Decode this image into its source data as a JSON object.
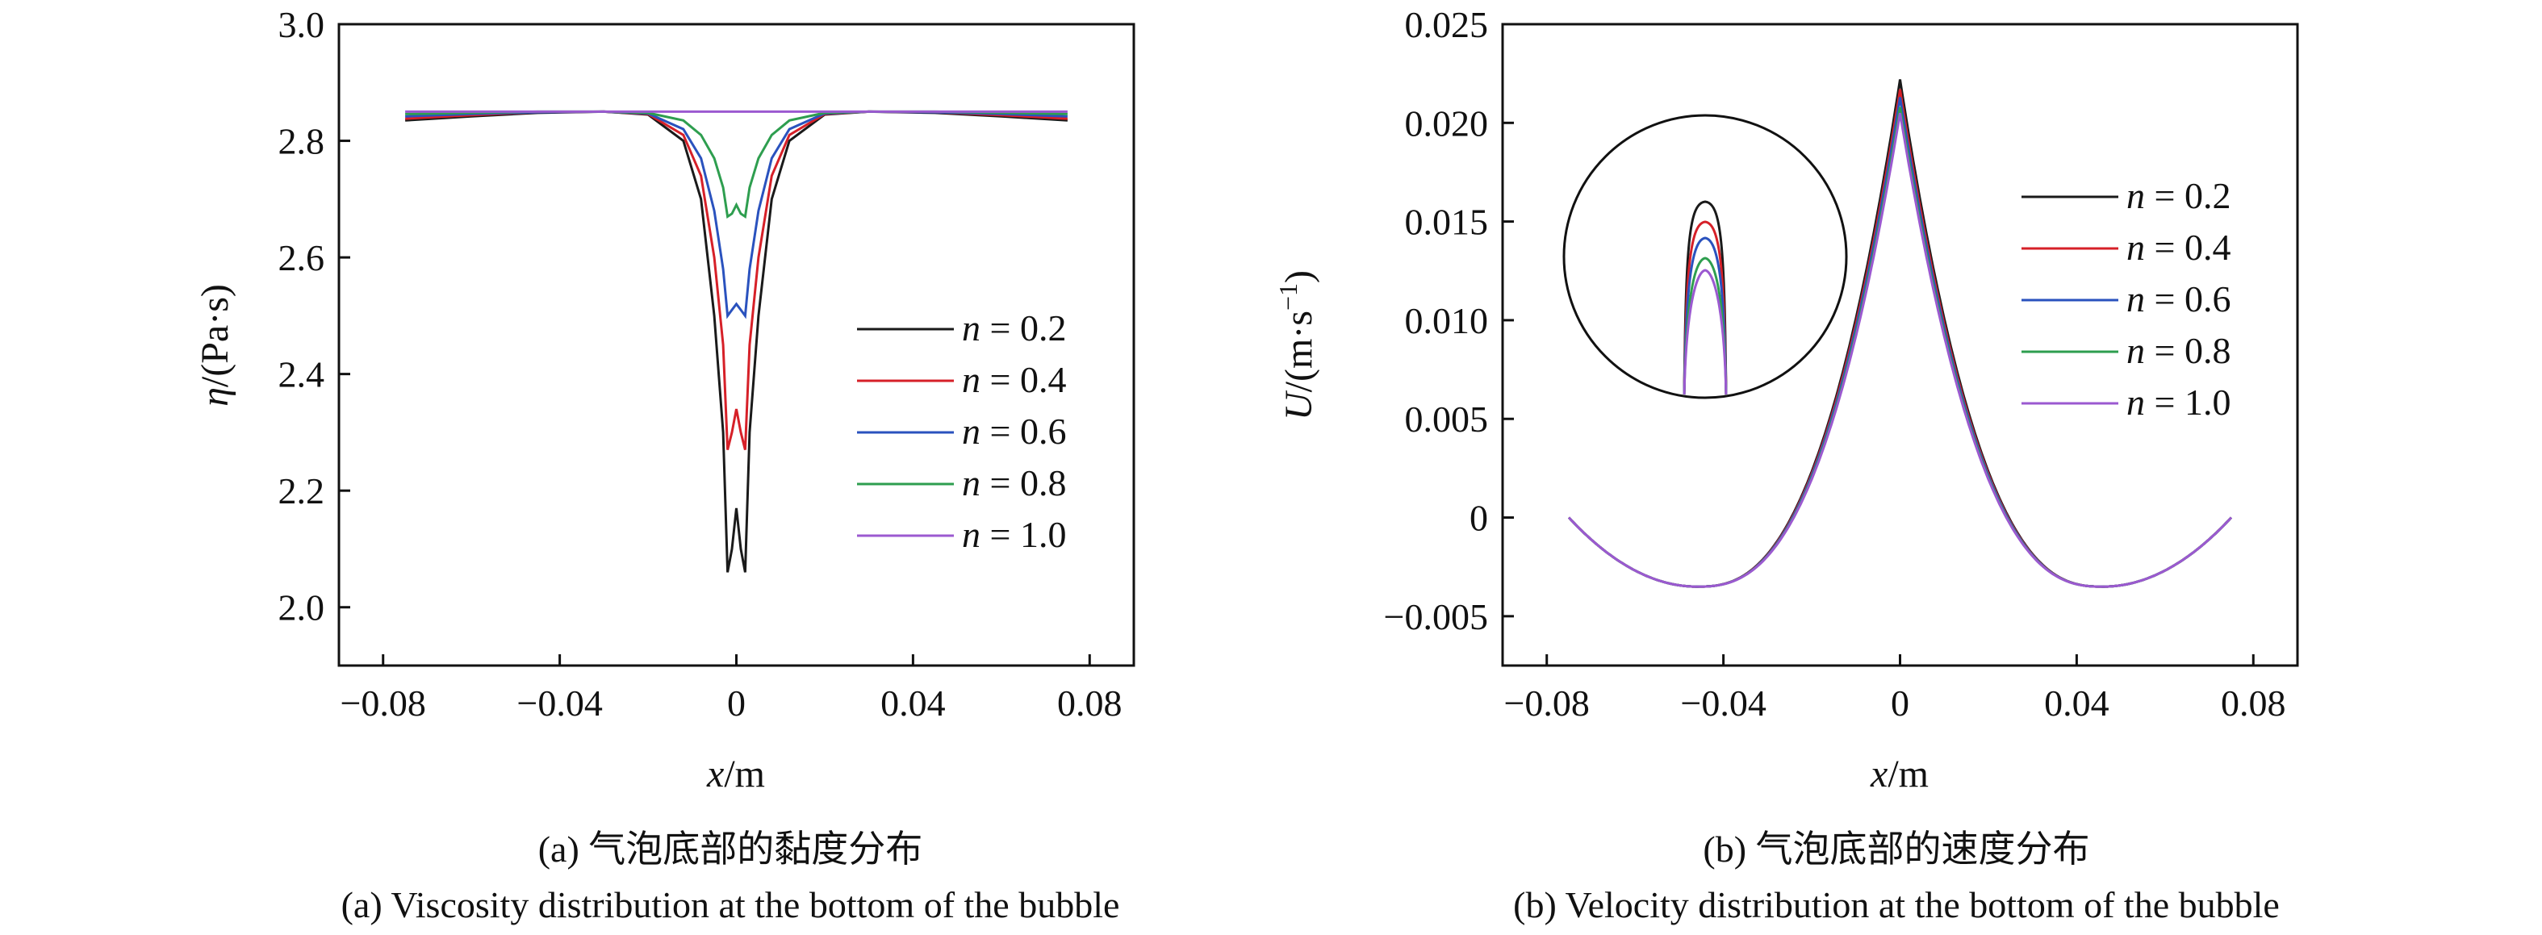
{
  "colors": {
    "n02": "#1a1a1a",
    "n04": "#d62028",
    "n06": "#2a52be",
    "n08": "#2e9e4f",
    "n10": "#9b59d0"
  },
  "chart_data": [
    {
      "type": "line",
      "id": "viscosity",
      "xlabel_var": "x",
      "xlabel_unit": "/m",
      "ylabel_var": "η",
      "ylabel_unit": "/(Pa·s)",
      "xlim": [
        -0.09,
        0.09
      ],
      "ylim": [
        1.9,
        3.0
      ],
      "xticks": [
        -0.08,
        -0.04,
        0,
        0.04,
        0.08
      ],
      "xtick_labels": [
        "−0.08",
        "−0.04",
        "0",
        "0.04",
        "0.08"
      ],
      "yticks": [
        2.0,
        2.2,
        2.4,
        2.6,
        2.8,
        3.0
      ],
      "ytick_labels": [
        "2.0",
        "2.2",
        "2.4",
        "2.6",
        "2.8",
        "3.0"
      ],
      "grid": false,
      "legend_position": "center-right",
      "series": [
        {
          "name": "n = 0.2",
          "var": "n",
          "val": " = 0.2",
          "color_key": "n02",
          "x": [
            -0.075,
            -0.06,
            -0.045,
            -0.03,
            -0.02,
            -0.012,
            -0.008,
            -0.005,
            -0.003,
            -0.002,
            -0.001,
            0,
            0.001,
            0.002,
            0.003,
            0.005,
            0.008,
            0.012,
            0.02,
            0.03,
            0.045,
            0.06,
            0.075
          ],
          "y": [
            2.835,
            2.842,
            2.848,
            2.85,
            2.845,
            2.8,
            2.7,
            2.5,
            2.3,
            2.06,
            2.1,
            2.17,
            2.1,
            2.06,
            2.3,
            2.5,
            2.7,
            2.8,
            2.845,
            2.85,
            2.848,
            2.842,
            2.835
          ]
        },
        {
          "name": "n = 0.4",
          "var": "n",
          "val": " = 0.4",
          "color_key": "n04",
          "x": [
            -0.075,
            -0.06,
            -0.045,
            -0.03,
            -0.02,
            -0.012,
            -0.008,
            -0.005,
            -0.003,
            -0.002,
            -0.001,
            0,
            0.001,
            0.002,
            0.003,
            0.005,
            0.008,
            0.012,
            0.02,
            0.03,
            0.045,
            0.06,
            0.075
          ],
          "y": [
            2.838,
            2.844,
            2.849,
            2.85,
            2.846,
            2.81,
            2.74,
            2.6,
            2.45,
            2.27,
            2.3,
            2.34,
            2.3,
            2.27,
            2.45,
            2.6,
            2.74,
            2.81,
            2.846,
            2.85,
            2.849,
            2.844,
            2.838
          ]
        },
        {
          "name": "n = 0.6",
          "var": "n",
          "val": " = 0.6",
          "color_key": "n06",
          "x": [
            -0.075,
            -0.06,
            -0.045,
            -0.03,
            -0.02,
            -0.012,
            -0.008,
            -0.005,
            -0.003,
            -0.002,
            -0.001,
            0,
            0.001,
            0.002,
            0.003,
            0.005,
            0.008,
            0.012,
            0.02,
            0.03,
            0.045,
            0.06,
            0.075
          ],
          "y": [
            2.842,
            2.846,
            2.849,
            2.85,
            2.847,
            2.82,
            2.77,
            2.68,
            2.58,
            2.5,
            2.51,
            2.52,
            2.51,
            2.5,
            2.58,
            2.68,
            2.77,
            2.82,
            2.847,
            2.85,
            2.849,
            2.846,
            2.842
          ]
        },
        {
          "name": "n = 0.8",
          "var": "n",
          "val": " = 0.8",
          "color_key": "n08",
          "x": [
            -0.075,
            -0.06,
            -0.045,
            -0.03,
            -0.02,
            -0.012,
            -0.008,
            -0.005,
            -0.003,
            -0.002,
            -0.001,
            0,
            0.001,
            0.002,
            0.003,
            0.005,
            0.008,
            0.012,
            0.02,
            0.03,
            0.045,
            0.06,
            0.075
          ],
          "y": [
            2.846,
            2.848,
            2.85,
            2.85,
            2.848,
            2.835,
            2.81,
            2.77,
            2.72,
            2.67,
            2.675,
            2.69,
            2.675,
            2.67,
            2.72,
            2.77,
            2.81,
            2.835,
            2.848,
            2.85,
            2.85,
            2.848,
            2.846
          ]
        },
        {
          "name": "n = 1.0",
          "var": "n",
          "val": " = 1.0",
          "color_key": "n10",
          "x": [
            -0.075,
            0.075
          ],
          "y": [
            2.85,
            2.85
          ]
        }
      ]
    },
    {
      "type": "line",
      "id": "velocity",
      "xlabel_var": "x",
      "xlabel_unit": "/m",
      "ylabel_var": "U",
      "ylabel_unit": "/(m·s",
      "ylabel_sup": "−1",
      "ylabel_close": ")",
      "xlim": [
        -0.09,
        0.09
      ],
      "ylim": [
        -0.0075,
        0.025
      ],
      "xticks": [
        -0.08,
        -0.04,
        0,
        0.04,
        0.08
      ],
      "xtick_labels": [
        "−0.08",
        "−0.04",
        "0",
        "0.04",
        "0.08"
      ],
      "yticks": [
        -0.005,
        0,
        0.005,
        0.01,
        0.015,
        0.02,
        0.025
      ],
      "ytick_labels": [
        "−0.005",
        "0",
        "0.005",
        "0.010",
        "0.015",
        "0.020",
        "0.025"
      ],
      "grid": false,
      "legend_position": "top-right",
      "inset": "circular zoom of the peak region, upper-left",
      "series": [
        {
          "name": "n = 0.2",
          "var": "n",
          "val": " = 0.2",
          "color_key": "n02",
          "peak": 0.0222
        },
        {
          "name": "n = 0.4",
          "var": "n",
          "val": " = 0.4",
          "color_key": "n04",
          "peak": 0.0217
        },
        {
          "name": "n = 0.6",
          "var": "n",
          "val": " = 0.6",
          "color_key": "n06",
          "peak": 0.0213
        },
        {
          "name": "n = 0.8",
          "var": "n",
          "val": " = 0.8",
          "color_key": "n08",
          "peak": 0.0208
        },
        {
          "name": "n = 1.0",
          "var": "n",
          "val": " = 1.0",
          "color_key": "n10",
          "peak": 0.0205
        }
      ],
      "shape": {
        "x_end": 0.075,
        "y_end": 0.0,
        "x_min": 0.046,
        "y_min": -0.0035
      }
    }
  ],
  "captions": {
    "a_cn": "(a) 气泡底部的黏度分布",
    "a_en": "(a) Viscosity distribution at the bottom of the bubble",
    "b_cn": "(b) 气泡底部的速度分布",
    "b_en": "(b) Velocity distribution at the bottom of the bubble"
  }
}
